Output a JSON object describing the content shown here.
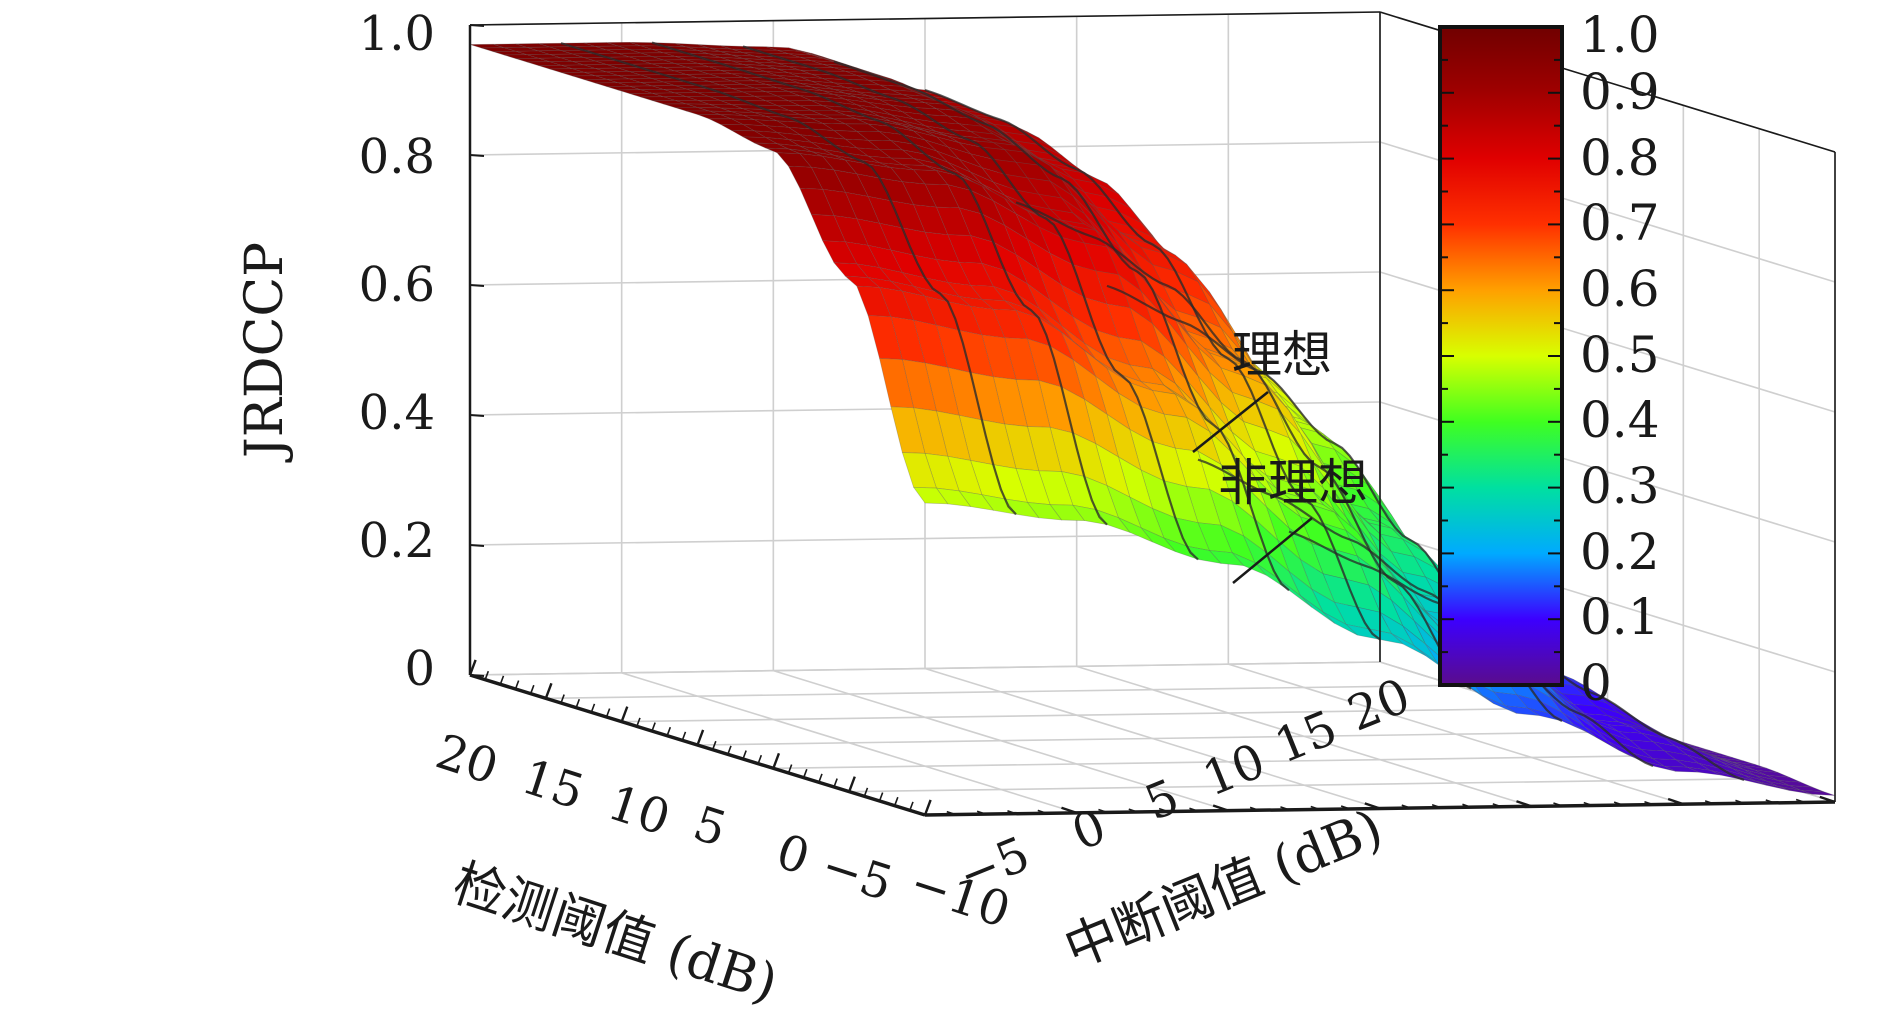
{
  "chart_data": {
    "type": "surface",
    "zlabel": "JRDCCP",
    "xlabel": "检测阈值 (dB)",
    "ylabel": "中断阈值 (dB)",
    "x_ticks": [
      "20",
      "15",
      "10",
      "5",
      "0",
      "−5",
      "−10"
    ],
    "y_ticks": [
      "−5",
      "0",
      "5",
      "10",
      "15",
      "20"
    ],
    "z_ticks": [
      "0",
      "0.2",
      "0.4",
      "0.6",
      "0.8",
      "1.0"
    ],
    "xlim": [
      -10,
      20
    ],
    "ylim": [
      -10,
      20
    ],
    "zlim": [
      0,
      1.0
    ],
    "colorbar": {
      "ticks": [
        "0",
        "0.1",
        "0.2",
        "0.3",
        "0.4",
        "0.5",
        "0.6",
        "0.7",
        "0.8",
        "0.9",
        "1.0"
      ],
      "range": [
        0,
        1.0
      ],
      "colormap": [
        "#5a0c8c",
        "#3c00ff",
        "#00aaff",
        "#00e0a0",
        "#40ff20",
        "#d8ff00",
        "#ffa000",
        "#ff3000",
        "#e00000",
        "#a00000",
        "#700000"
      ]
    },
    "annotations": [
      "理想",
      "非理想"
    ],
    "grid": true,
    "series": [
      {
        "name": "理想",
        "x": [
          -10,
          -5,
          0,
          5,
          10,
          15,
          20
        ],
        "y": [
          -10,
          -5,
          0,
          5,
          10,
          15,
          20
        ],
        "z": [
          [
            0.48,
            0.79,
            0.95,
            0.97,
            0.97,
            0.97,
            0.97
          ],
          [
            0.45,
            0.75,
            0.92,
            0.96,
            0.97,
            0.97,
            0.97
          ],
          [
            0.38,
            0.62,
            0.83,
            0.92,
            0.95,
            0.96,
            0.96
          ],
          [
            0.26,
            0.44,
            0.62,
            0.76,
            0.84,
            0.88,
            0.89
          ],
          [
            0.14,
            0.24,
            0.36,
            0.48,
            0.56,
            0.6,
            0.62
          ],
          [
            0.05,
            0.09,
            0.14,
            0.19,
            0.23,
            0.26,
            0.28
          ],
          [
            0.01,
            0.02,
            0.02,
            0.03,
            0.04,
            0.05,
            0.06
          ]
        ]
      }
    ]
  }
}
